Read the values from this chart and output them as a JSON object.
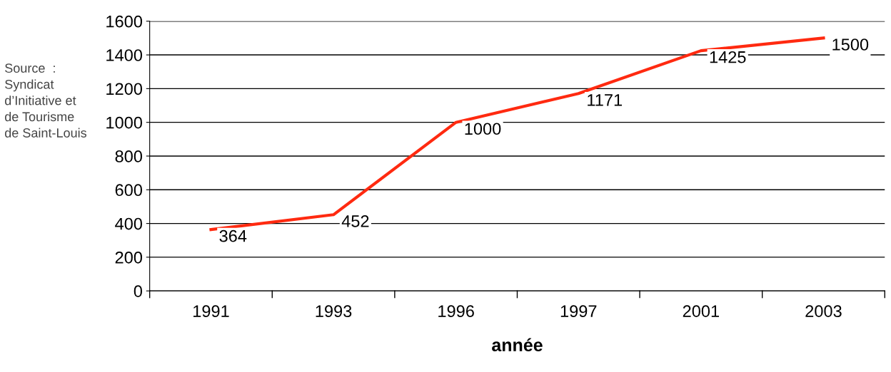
{
  "chart_data": {
    "type": "line",
    "xlabel": "année",
    "categories": [
      "1991",
      "1993",
      "1996",
      "1997",
      "2001",
      "2003"
    ],
    "series": [
      {
        "color": "#ff2a10",
        "values": [
          364,
          452,
          1000,
          1171,
          1425,
          1500
        ]
      }
    ],
    "ylim": [
      0,
      1600
    ],
    "yticks": [
      0,
      200,
      400,
      600,
      800,
      1000,
      1200,
      1400,
      1600
    ],
    "grid": "y",
    "data_labels": true,
    "marker": "none",
    "line_style": "solid",
    "annotations": [
      "Source  :\nSyndicat\nd’Initiative et\nde Tourisme\nde Saint-Louis"
    ]
  }
}
